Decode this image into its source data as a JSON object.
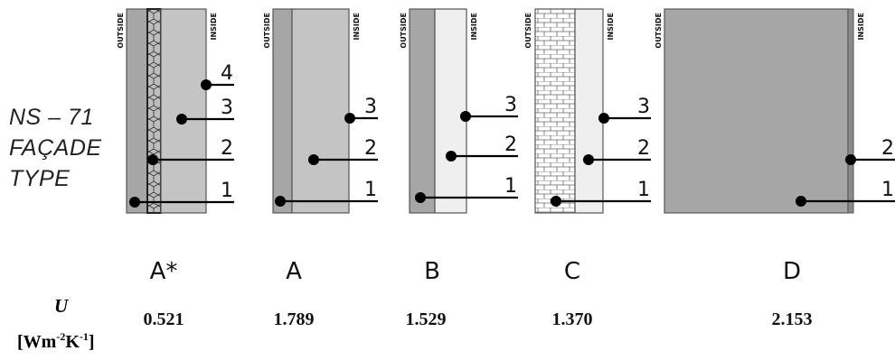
{
  "title_lines": [
    "NS – 71",
    "FAÇADE",
    "TYPE"
  ],
  "wall_side_labels": {
    "outside": "OUTSIDE",
    "inside": "INSIDE"
  },
  "u_label": {
    "symbol": "U",
    "unit_open": "[Wm",
    "exp1": "-2",
    "mid": "K",
    "exp2": "-1",
    "unit_close": "]"
  },
  "panels": [
    {
      "code": "A*",
      "u": "0.521",
      "points": [
        "1",
        "2",
        "3",
        "4"
      ]
    },
    {
      "code": "A",
      "u": "1.789",
      "points": [
        "1",
        "2",
        "3"
      ]
    },
    {
      "code": "B",
      "u": "1.529",
      "points": [
        "1",
        "2",
        "3"
      ]
    },
    {
      "code": "C",
      "u": "1.370",
      "points": [
        "1",
        "2",
        "3"
      ]
    },
    {
      "code": "D",
      "u": "2.153",
      "points": [
        "1",
        "2"
      ]
    }
  ],
  "colors": {
    "dark_layer": "#a6a6a6",
    "mid_layer": "#c4c4c4",
    "light_layer": "#efefef",
    "insulation_fill": "#bdbdbd",
    "outline": "#555555"
  }
}
